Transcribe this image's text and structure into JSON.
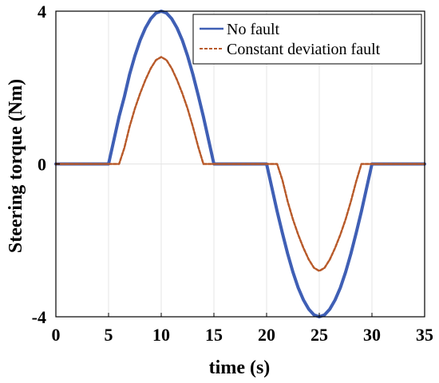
{
  "chart_data": {
    "type": "line",
    "title": "",
    "xlabel": "time (s)",
    "ylabel": "Steering torque (Nm)",
    "xlim": [
      0,
      35
    ],
    "ylim": [
      -4,
      4
    ],
    "x_ticks": [
      "0",
      "5",
      "10",
      "15",
      "20",
      "25",
      "30",
      "35"
    ],
    "y_ticks": [
      "-4",
      "0",
      "4"
    ],
    "grid": true,
    "legend_position": "top-right",
    "series": [
      {
        "name": "No fault",
        "color": "#3f5fb5",
        "line_style": "solid",
        "x": [
          0,
          5,
          5.5,
          6,
          6.5,
          7,
          7.5,
          8,
          8.5,
          9,
          9.5,
          10,
          10.5,
          11,
          11.5,
          12,
          12.5,
          13,
          13.5,
          14,
          14.5,
          15,
          20,
          20.5,
          21,
          21.5,
          22,
          22.5,
          23,
          23.5,
          24,
          24.5,
          25,
          25.5,
          26,
          26.5,
          27,
          27.5,
          28,
          28.5,
          29,
          29.5,
          30,
          35
        ],
        "y": [
          0,
          0,
          0.62,
          1.24,
          1.76,
          2.35,
          2.83,
          3.24,
          3.56,
          3.8,
          3.95,
          4.0,
          3.95,
          3.8,
          3.56,
          3.24,
          2.83,
          2.35,
          1.81,
          1.24,
          0.62,
          0,
          0,
          -0.62,
          -1.24,
          -1.81,
          -2.35,
          -2.83,
          -3.24,
          -3.56,
          -3.8,
          -3.95,
          -4.0,
          -3.95,
          -3.8,
          -3.56,
          -3.24,
          -2.83,
          -2.35,
          -1.81,
          -1.24,
          -0.62,
          0,
          0
        ]
      },
      {
        "name": "Constant deviation fault",
        "color": "#b85a2a",
        "line_style": "dashed",
        "x": [
          0,
          5,
          5.5,
          6,
          6.5,
          7,
          7.5,
          8,
          8.5,
          9,
          9.5,
          10,
          10.5,
          11,
          11.5,
          12,
          12.5,
          13,
          13.5,
          14,
          14.5,
          15,
          20,
          20.5,
          21,
          21.5,
          22,
          22.5,
          23,
          23.5,
          24,
          24.5,
          25,
          25.5,
          26,
          26.5,
          27,
          27.5,
          28,
          28.5,
          29,
          29.5,
          30,
          35
        ],
        "y": [
          0,
          0,
          0,
          0,
          0.42,
          0.98,
          1.45,
          1.85,
          2.2,
          2.5,
          2.72,
          2.8,
          2.72,
          2.5,
          2.2,
          1.85,
          1.45,
          0.98,
          0.46,
          0,
          0,
          0,
          0,
          0,
          0,
          -0.42,
          -0.98,
          -1.45,
          -1.85,
          -2.2,
          -2.5,
          -2.72,
          -2.8,
          -2.72,
          -2.5,
          -2.2,
          -1.85,
          -1.45,
          -0.98,
          -0.46,
          0,
          0,
          0,
          0
        ]
      }
    ]
  }
}
